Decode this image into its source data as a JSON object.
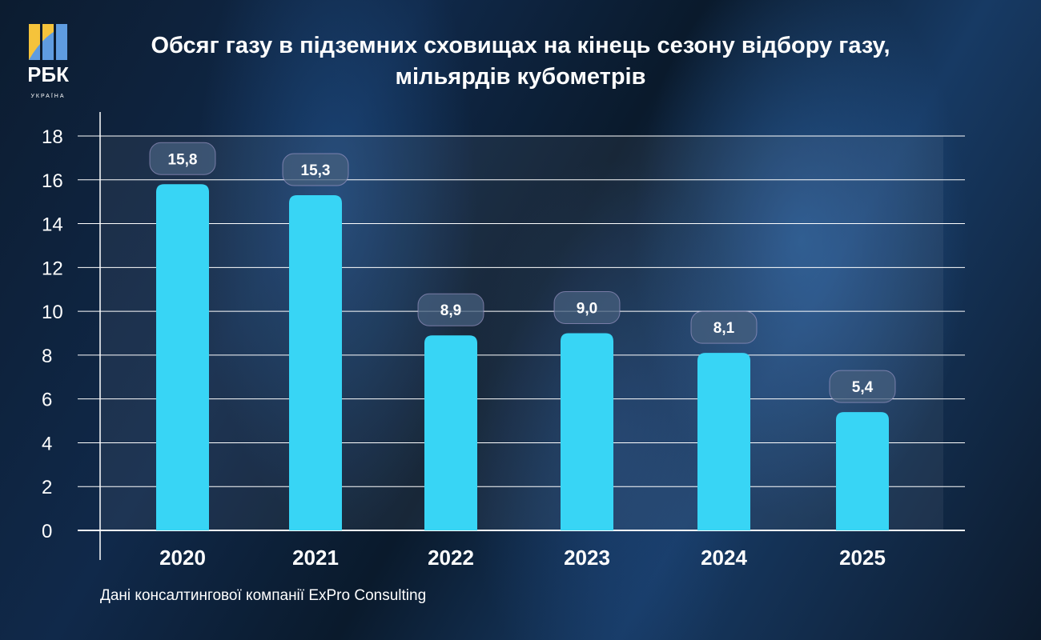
{
  "title": "Обсяг газу в підземних сховищах на кінець сезону відбору газу, мільярдів кубометрів",
  "title_line1": "Обсяг газу в підземних сховищах на кінець сезону відбору газу,",
  "title_line2": "мільярдів кубометрів",
  "logo": {
    "text": "РБК",
    "subtext": "УКРАЇНА",
    "colors": [
      "#f5c33b",
      "#5f9ce0"
    ]
  },
  "source": "Дані консалтингової компанії ExPro Consulting",
  "colors": {
    "bar": "#38d5f5",
    "background": "#0d2038"
  },
  "chart_data": {
    "type": "bar",
    "categories": [
      "2020",
      "2021",
      "2022",
      "2023",
      "2024",
      "2025"
    ],
    "values": [
      15.8,
      15.3,
      8.9,
      9.0,
      8.1,
      5.4
    ],
    "data_labels": [
      "15,8",
      "15,3",
      "8,9",
      "9,0",
      "8,1",
      "5,4"
    ],
    "yticks": [
      "0",
      "2",
      "4",
      "6",
      "8",
      "10",
      "12",
      "14",
      "16",
      "18"
    ],
    "ylim": [
      0,
      18
    ],
    "grid": true,
    "xlabel": "",
    "ylabel": ""
  }
}
